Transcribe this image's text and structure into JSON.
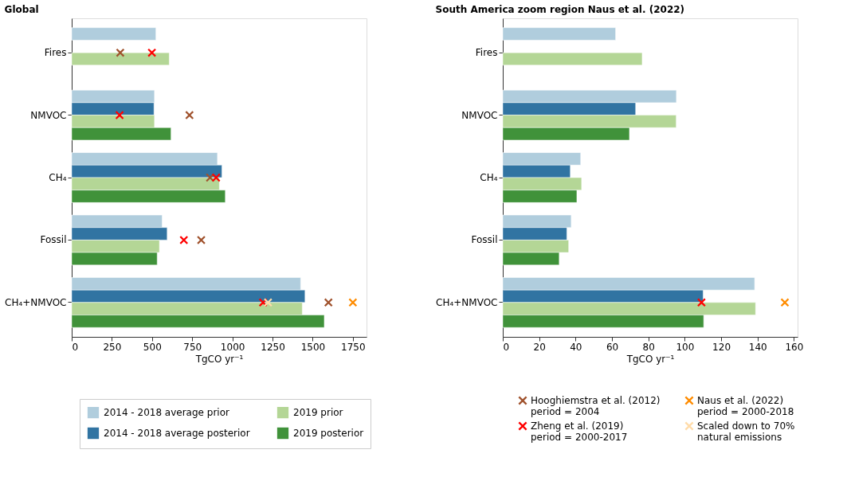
{
  "chart_data": [
    {
      "type": "bar",
      "orientation": "horizontal",
      "title": "Global",
      "xlabel": "TgCO yr⁻¹",
      "categories": [
        "Fires",
        "NMVOC",
        "CH₄",
        "Fossil",
        "CH₄+NMVOC"
      ],
      "xlim": [
        0,
        1835
      ],
      "xticks": [
        0,
        250,
        500,
        750,
        1000,
        1250,
        1500,
        1750
      ],
      "grid": false,
      "legend": "bottom",
      "marker": "cross",
      "series": [
        {
          "name": "2014 - 2018 average prior",
          "color": "#b0cddd",
          "values": [
            524,
            515,
            907,
            563,
            1425
          ]
        },
        {
          "name": "2014 - 2018 average posterior",
          "color": "#3174a2",
          "values": [
            null,
            512,
            935,
            594,
            1452
          ]
        },
        {
          "name": "2019 prior",
          "color": "#b4d696",
          "values": [
            607,
            515,
            919,
            546,
            1435
          ]
        },
        {
          "name": "2019 posterior",
          "color": "#40923a",
          "values": [
            null,
            618,
            956,
            532,
            1572
          ]
        },
        {
          "name": "Hooghiemstra et al. (2012)\nperiod = 2004",
          "type": "scatter",
          "color": "#a0522d",
          "values": [
            302,
            733,
            861,
            806,
            1598
          ]
        },
        {
          "name": "Zheng et al. (2019)\nperiod = 2000-2017",
          "type": "scatter",
          "color": "#ff0000",
          "values": [
            499,
            298,
            899,
            698,
            1191
          ]
        },
        {
          "name": "Naus et al. (2022)\nperiod = 2000-2018",
          "type": "scatter",
          "color": "#ff8c00",
          "values": [
            null,
            null,
            null,
            null,
            1750
          ]
        },
        {
          "name": "Scaled down to 70%\nnatural emissions",
          "type": "scatter",
          "color": "#ffdcaa",
          "values": [
            null,
            null,
            null,
            null,
            1222
          ]
        }
      ]
    },
    {
      "type": "bar",
      "orientation": "horizontal",
      "title": "South America zoom region Naus et al. (2022)",
      "xlabel": "TgCO yr⁻¹",
      "categories": [
        "Fires",
        "NMVOC",
        "CH₄",
        "Fossil",
        "CH₄+NMVOC"
      ],
      "xlim": [
        0,
        162
      ],
      "xticks": [
        0,
        20,
        40,
        60,
        80,
        100,
        120,
        140,
        160
      ],
      "grid": false,
      "legend": "bottom",
      "marker": "cross",
      "series": [
        {
          "name": "2014 - 2018 average prior",
          "color": "#b0cddd",
          "values": [
            62.0,
            95.4,
            42.8,
            37.6,
            138.4
          ]
        },
        {
          "name": "2014 - 2018 average posterior",
          "color": "#3174a2",
          "values": [
            null,
            73.0,
            37.1,
            35.2,
            110.1
          ]
        },
        {
          "name": "2019 prior",
          "color": "#b4d696",
          "values": [
            76.6,
            95.3,
            43.3,
            36.2,
            138.9
          ]
        },
        {
          "name": "2019 posterior",
          "color": "#40923a",
          "values": [
            null,
            69.6,
            40.7,
            31.0,
            110.4
          ]
        },
        {
          "name": "Zheng et al. (2019)\nperiod = 2000-2017",
          "type": "scatter",
          "color": "#ff0000",
          "values": [
            null,
            null,
            null,
            null,
            109.2
          ]
        },
        {
          "name": "Naus et al. (2022)\nperiod = 2000-2018",
          "type": "scatter",
          "color": "#ff8c00",
          "values": [
            null,
            null,
            null,
            null,
            155
          ]
        }
      ]
    }
  ]
}
